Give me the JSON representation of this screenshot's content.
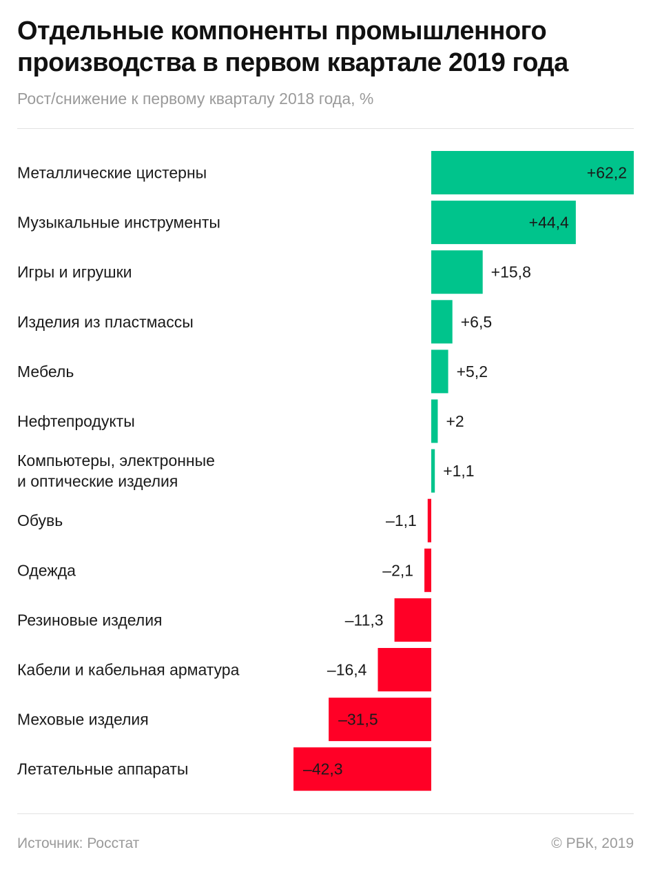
{
  "title": "Отдельные компоненты промышленного производства в первом квартале 2019 года",
  "subtitle": "Рост/снижение к первому кварталу 2018 года, %",
  "source": "Источник: Росстат",
  "copyright": "© РБК, 2019",
  "colors": {
    "positive": "#00c48c",
    "negative": "#ff0026"
  },
  "chart_data": {
    "type": "bar",
    "orientation": "horizontal",
    "categories": [
      [
        "Металлические цистерны"
      ],
      [
        "Музыкальные инструменты"
      ],
      [
        "Игры и игрушки"
      ],
      [
        "Изделия из пластмассы"
      ],
      [
        "Мебель"
      ],
      [
        "Нефтепродукты"
      ],
      [
        "Компьютеры, электронные",
        "и оптические изделия"
      ],
      [
        "Обувь"
      ],
      [
        "Одежда"
      ],
      [
        "Резиновые изделия"
      ],
      [
        "Кабели и кабельная арматура"
      ],
      [
        "Меховые изделия"
      ],
      [
        "Летательные аппараты"
      ]
    ],
    "values": [
      62.2,
      44.4,
      15.8,
      6.5,
      5.2,
      2,
      1.1,
      -1.1,
      -2.1,
      -11.3,
      -16.4,
      -31.5,
      -42.3
    ],
    "value_labels": [
      "+62,2",
      "+44,4",
      "+15,8",
      "+6,5",
      "+5,2",
      "+2",
      "+1,1",
      "–1,1",
      "–2,1",
      "–11,3",
      "–16,4",
      "–31,5",
      "–42,3"
    ],
    "xlim": [
      -42.3,
      62.2
    ],
    "grid": false
  }
}
